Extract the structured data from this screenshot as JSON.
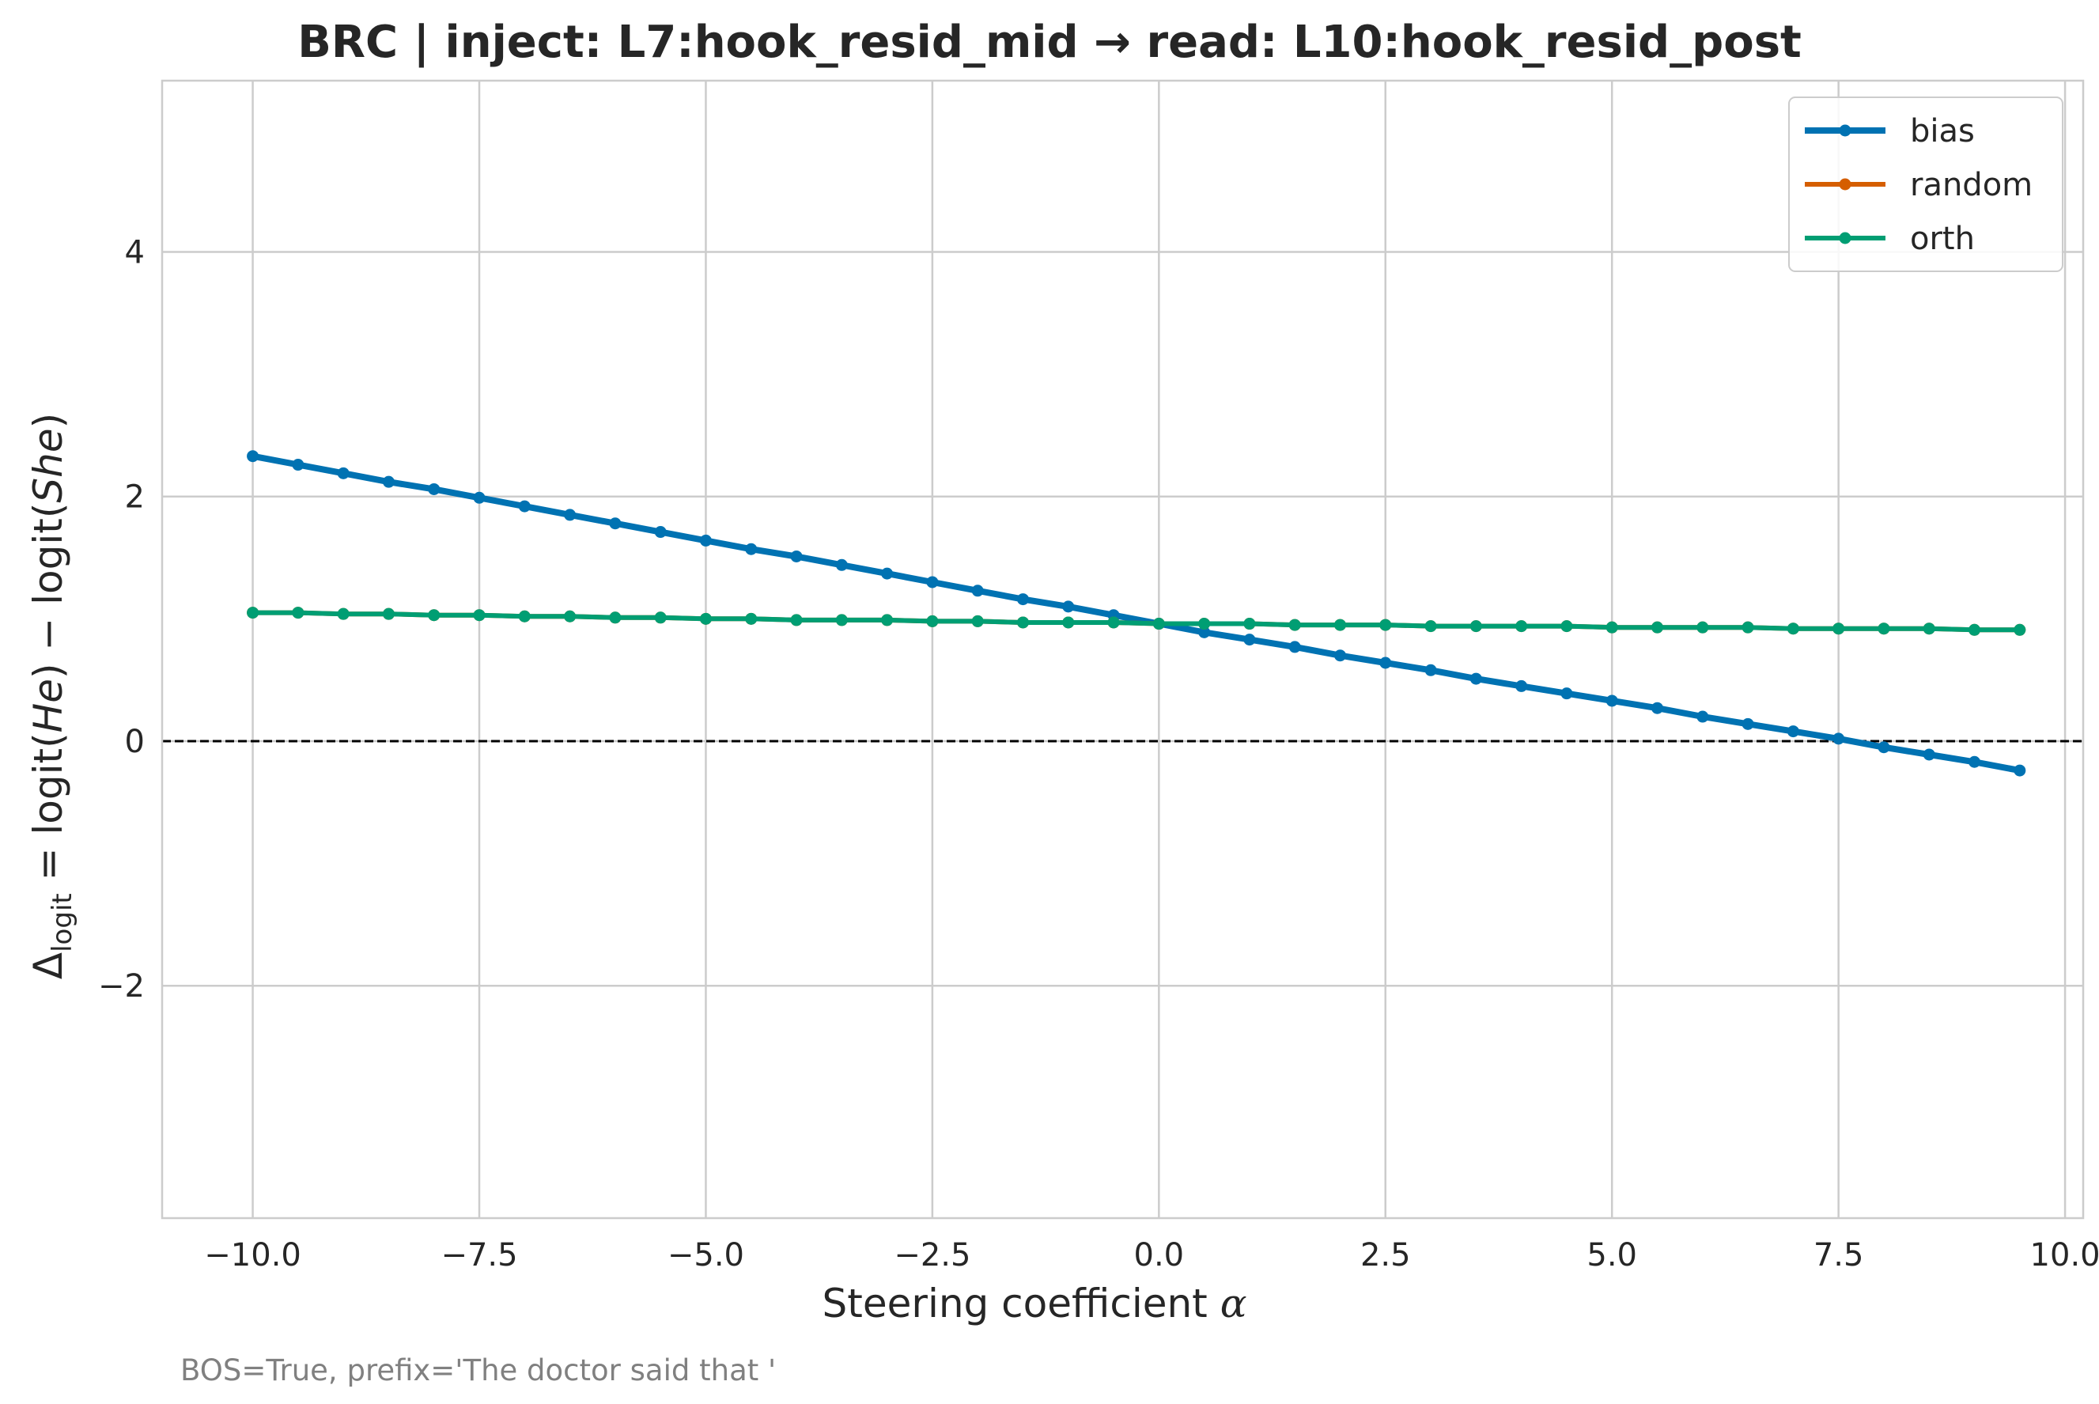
{
  "chart_data": {
    "type": "line",
    "title": "BRC | inject: L7:hook_resid_mid → read: L10:hook_resid_post",
    "xlabel": "Steering coefficient α",
    "ylabel": "Δ_logit = logit(He) − logit(She)",
    "ylabel_parts": {
      "delta": "Δ",
      "sub": "logit",
      "mid": " = logit(",
      "he": "He",
      "mid2": ") − logit(",
      "she": "She",
      "end": ")"
    },
    "xlabel_parts": {
      "text": "Steering coefficient ",
      "alpha": "α"
    },
    "xlim": [
      -11.0,
      10.2
    ],
    "ylim": [
      -3.9,
      5.4
    ],
    "xticks": [
      -10.0,
      -7.5,
      -5.0,
      -2.5,
      0.0,
      2.5,
      5.0,
      7.5,
      10.0
    ],
    "xtick_labels": [
      "−10.0",
      "−7.5",
      "−5.0",
      "−2.5",
      "0.0",
      "2.5",
      "5.0",
      "7.5",
      "10.0"
    ],
    "yticks": [
      -2,
      0,
      2,
      4
    ],
    "ytick_labels": [
      "−2",
      "0",
      "2",
      "4"
    ],
    "grid": true,
    "legend_position": "top-right",
    "reference_line": {
      "y": 0,
      "style": "dashed",
      "color": "#000000"
    },
    "x": [
      -10.0,
      -9.5,
      -9.0,
      -8.5,
      -8.0,
      -7.5,
      -7.0,
      -6.5,
      -6.0,
      -5.5,
      -5.0,
      -4.5,
      -4.0,
      -3.5,
      -3.0,
      -2.5,
      -2.0,
      -1.5,
      -1.0,
      -0.5,
      0.0,
      0.5,
      1.0,
      1.5,
      2.0,
      2.5,
      3.0,
      3.5,
      4.0,
      4.5,
      5.0,
      5.5,
      6.0,
      6.5,
      7.0,
      7.5,
      8.0,
      8.5,
      9.0,
      9.5
    ],
    "series": [
      {
        "name": "bias",
        "color": "#0072B2",
        "values": [
          2.33,
          2.26,
          2.19,
          2.12,
          2.06,
          1.99,
          1.92,
          1.85,
          1.78,
          1.71,
          1.64,
          1.57,
          1.51,
          1.44,
          1.37,
          1.3,
          1.23,
          1.16,
          1.1,
          1.03,
          0.96,
          0.89,
          0.83,
          0.77,
          0.7,
          0.64,
          0.58,
          0.51,
          0.45,
          0.39,
          0.33,
          0.27,
          0.2,
          0.14,
          0.08,
          0.02,
          -0.05,
          -0.11,
          -0.17,
          -0.24
        ]
      },
      {
        "name": "random",
        "color": "#D55E00",
        "values": [
          1.05,
          1.05,
          1.04,
          1.04,
          1.03,
          1.03,
          1.02,
          1.02,
          1.01,
          1.01,
          1.0,
          1.0,
          0.99,
          0.99,
          0.99,
          0.98,
          0.98,
          0.97,
          0.97,
          0.97,
          0.96,
          0.96,
          0.96,
          0.95,
          0.95,
          0.95,
          0.94,
          0.94,
          0.94,
          0.94,
          0.93,
          0.93,
          0.93,
          0.93,
          0.92,
          0.92,
          0.92,
          0.92,
          0.91,
          0.91
        ]
      },
      {
        "name": "orth",
        "color": "#009E73",
        "values": [
          1.05,
          1.05,
          1.04,
          1.04,
          1.03,
          1.03,
          1.02,
          1.02,
          1.01,
          1.01,
          1.0,
          1.0,
          0.99,
          0.99,
          0.99,
          0.98,
          0.98,
          0.97,
          0.97,
          0.97,
          0.96,
          0.96,
          0.96,
          0.95,
          0.95,
          0.95,
          0.94,
          0.94,
          0.94,
          0.94,
          0.93,
          0.93,
          0.93,
          0.93,
          0.92,
          0.92,
          0.92,
          0.92,
          0.91,
          0.91
        ]
      }
    ],
    "caption": "BOS=True, prefix='The doctor said that '"
  }
}
